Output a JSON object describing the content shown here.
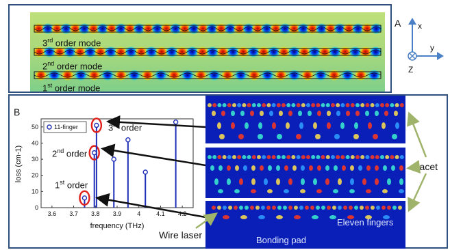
{
  "panel_a": {
    "letter": "A",
    "modes": [
      {
        "ord": "3",
        "sup": "rd",
        "rest": " order mode"
      },
      {
        "ord": "2",
        "sup": "nd",
        "rest": " order mode"
      },
      {
        "ord": "1",
        "sup": "st",
        "rest": " order mode"
      }
    ],
    "axes": {
      "x": "x",
      "y": "y",
      "z": "Z"
    }
  },
  "panel_b": {
    "letter": "B",
    "order_labels": [
      {
        "ord": "3",
        "sup": "rd",
        "rest": " order"
      },
      {
        "ord": "2",
        "sup": "nd",
        "rest": " order"
      },
      {
        "ord": "1",
        "sup": "st",
        "rest": " order"
      }
    ],
    "facet": "Facet",
    "eleven_fingers": "Eleven fingers",
    "wire_laser": "Wire laser",
    "bonding_pad": "Bonding pad"
  },
  "chart_data": {
    "type": "scatter",
    "style": "stem",
    "xlabel": "frequency (THz)",
    "ylabel": "loss (cm-1)",
    "xlim": [
      3.55,
      4.25
    ],
    "ylim": [
      0,
      55
    ],
    "xticks": [
      3.6,
      3.7,
      3.8,
      3.9,
      4,
      4.1,
      4.2
    ],
    "yticks": [
      0,
      10,
      20,
      30,
      40,
      50
    ],
    "legend": "top-left",
    "series": [
      {
        "name": "11-finger",
        "color": "#1f2fb8",
        "x": [
          3.75,
          3.795,
          3.805,
          3.885,
          3.95,
          4.03,
          4.17
        ],
        "y": [
          6,
          34,
          51,
          30,
          42,
          22,
          53
        ]
      }
    ],
    "highlighted_points": [
      0,
      1,
      2
    ]
  }
}
